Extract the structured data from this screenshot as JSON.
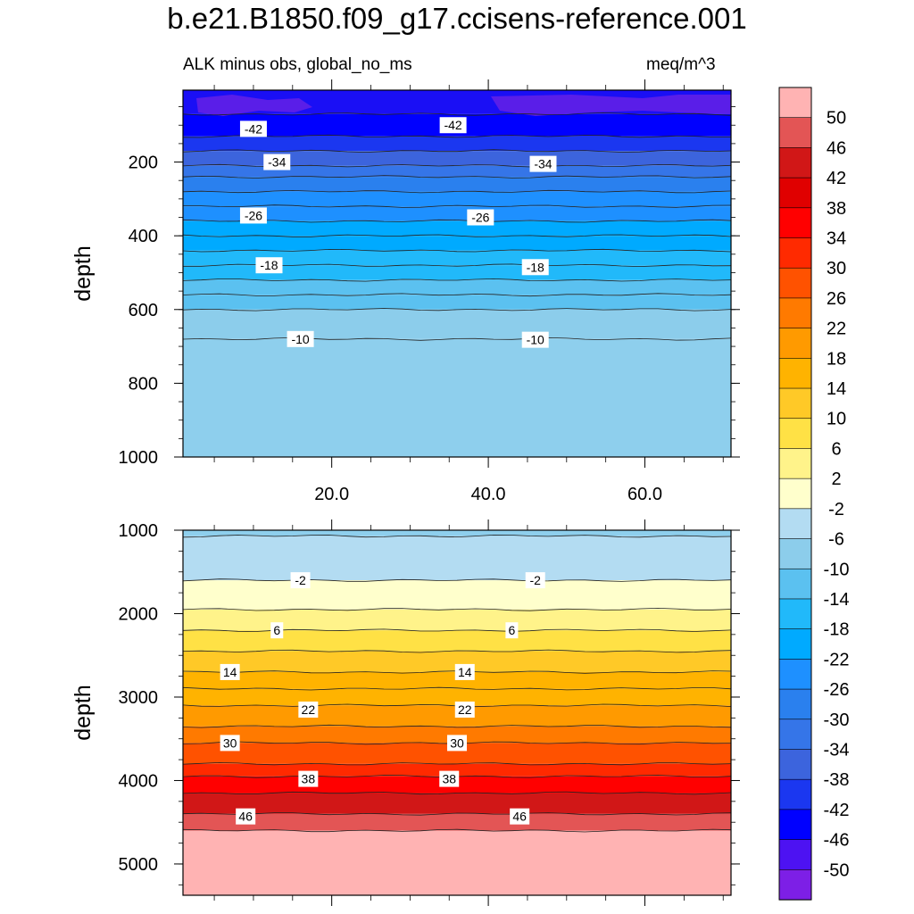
{
  "title": "b.e21.B1850.f09_g17.ccisens-reference.001",
  "subtitle_left": "ALK minus obs, global_no_ms",
  "subtitle_right": "meq/m^3",
  "chart_data": [
    {
      "type": "heatmap",
      "name": "upper-panel",
      "xlabel": "",
      "ylabel": "depth",
      "xlim": [
        1,
        71
      ],
      "ylim": [
        1000,
        5
      ],
      "xticks": [
        "20.0",
        "40.0",
        "60.0"
      ],
      "xtick_values": [
        20,
        40,
        60
      ],
      "yticks": [
        "200",
        "400",
        "600",
        "800",
        "1000"
      ],
      "ytick_values": [
        200,
        400,
        600,
        800,
        1000
      ],
      "contour_depths": [
        70,
        130,
        170,
        210,
        240,
        280,
        320,
        360,
        400,
        440,
        480,
        520,
        560,
        600,
        680
      ],
      "bands": [
        {
          "top": 5,
          "bottom": 70,
          "value": -50
        },
        {
          "top": 70,
          "bottom": 130,
          "value": -46
        },
        {
          "top": 130,
          "bottom": 170,
          "value": -42
        },
        {
          "top": 170,
          "bottom": 210,
          "value": -38
        },
        {
          "top": 210,
          "bottom": 240,
          "value": -34
        },
        {
          "top": 240,
          "bottom": 280,
          "value": -30
        },
        {
          "top": 280,
          "bottom": 320,
          "value": -26
        },
        {
          "top": 320,
          "bottom": 360,
          "value": -26
        },
        {
          "top": 360,
          "bottom": 400,
          "value": -22
        },
        {
          "top": 400,
          "bottom": 440,
          "value": -22
        },
        {
          "top": 440,
          "bottom": 480,
          "value": -18
        },
        {
          "top": 480,
          "bottom": 520,
          "value": -18
        },
        {
          "top": 520,
          "bottom": 560,
          "value": -14
        },
        {
          "top": 560,
          "bottom": 600,
          "value": -14
        },
        {
          "top": 600,
          "bottom": 680,
          "value": -10
        },
        {
          "top": 680,
          "bottom": 1000,
          "value": -6
        }
      ],
      "contour_labels": [
        {
          "text": "-42",
          "x": 10,
          "depth": 110
        },
        {
          "text": "-42",
          "x": 35.5,
          "depth": 100
        },
        {
          "text": "-34",
          "x": 13,
          "depth": 200
        },
        {
          "text": "-34",
          "x": 47,
          "depth": 205
        },
        {
          "text": "-26",
          "x": 10,
          "depth": 345
        },
        {
          "text": "-26",
          "x": 39,
          "depth": 350
        },
        {
          "text": "-18",
          "x": 12,
          "depth": 480
        },
        {
          "text": "-18",
          "x": 46,
          "depth": 485
        },
        {
          "text": "-10",
          "x": 16,
          "depth": 680
        },
        {
          "text": "-10",
          "x": 46,
          "depth": 682
        }
      ]
    },
    {
      "type": "heatmap",
      "name": "lower-panel",
      "xlabel": "",
      "ylabel": "depth",
      "xlim": [
        1,
        71
      ],
      "ylim": [
        5375,
        1000
      ],
      "xticks": [],
      "xtick_values": [
        20,
        40,
        60
      ],
      "yticks": [
        "1000",
        "2000",
        "3000",
        "4000",
        "5000"
      ],
      "ytick_values": [
        1000,
        2000,
        3000,
        4000,
        5000
      ],
      "contour_depths": [
        1070,
        1600,
        1950,
        2200,
        2450,
        2700,
        2900,
        3100,
        3350,
        3550,
        3800,
        3950,
        4150,
        4400,
        4600
      ],
      "bands": [
        {
          "top": 1000,
          "bottom": 1070,
          "value": -6
        },
        {
          "top": 1070,
          "bottom": 1600,
          "value": -2
        },
        {
          "top": 1600,
          "bottom": 1950,
          "value": 2
        },
        {
          "top": 1950,
          "bottom": 2200,
          "value": 6
        },
        {
          "top": 2200,
          "bottom": 2450,
          "value": 10
        },
        {
          "top": 2450,
          "bottom": 2700,
          "value": 14
        },
        {
          "top": 2700,
          "bottom": 2900,
          "value": 18
        },
        {
          "top": 2900,
          "bottom": 3100,
          "value": 18
        },
        {
          "top": 3100,
          "bottom": 3350,
          "value": 22
        },
        {
          "top": 3350,
          "bottom": 3550,
          "value": 26
        },
        {
          "top": 3550,
          "bottom": 3800,
          "value": 30
        },
        {
          "top": 3800,
          "bottom": 3950,
          "value": 34
        },
        {
          "top": 3950,
          "bottom": 4150,
          "value": 38
        },
        {
          "top": 4150,
          "bottom": 4400,
          "value": 42
        },
        {
          "top": 4400,
          "bottom": 4600,
          "value": 46
        },
        {
          "top": 4600,
          "bottom": 5375,
          "value": 50
        }
      ],
      "contour_labels": [
        {
          "text": "-2",
          "x": 16,
          "depth": 1600
        },
        {
          "text": "-2",
          "x": 46,
          "depth": 1600
        },
        {
          "text": "6",
          "x": 13,
          "depth": 2200
        },
        {
          "text": "6",
          "x": 43,
          "depth": 2200
        },
        {
          "text": "14",
          "x": 7,
          "depth": 2700
        },
        {
          "text": "14",
          "x": 37,
          "depth": 2700
        },
        {
          "text": "22",
          "x": 17,
          "depth": 3150
        },
        {
          "text": "22",
          "x": 37,
          "depth": 3150
        },
        {
          "text": "30",
          "x": 7,
          "depth": 3550
        },
        {
          "text": "30",
          "x": 36,
          "depth": 3550
        },
        {
          "text": "38",
          "x": 17,
          "depth": 3980
        },
        {
          "text": "38",
          "x": 35,
          "depth": 3980
        },
        {
          "text": "46",
          "x": 9,
          "depth": 4430
        },
        {
          "text": "46",
          "x": 44,
          "depth": 4430
        }
      ]
    }
  ],
  "colorbar": {
    "levels": [
      "50",
      "46",
      "42",
      "38",
      "34",
      "30",
      "26",
      "22",
      "18",
      "14",
      "10",
      "6",
      "2",
      "-2",
      "-6",
      "-10",
      "-14",
      "-18",
      "-22",
      "-26",
      "-30",
      "-34",
      "-38",
      "-42",
      "-46",
      "-50"
    ],
    "colors": [
      "#ffb3b3",
      "#e35555",
      "#d11717",
      "#e00000",
      "#ff0000",
      "#ff2a00",
      "#ff5200",
      "#ff7a00",
      "#ff9a00",
      "#ffb300",
      "#ffc927",
      "#ffe145",
      "#fff38a",
      "#ffffcc",
      "#b3dcf2",
      "#8ccdeb",
      "#5bc1f0",
      "#21b9fa",
      "#00aaff",
      "#1e90ff",
      "#2a80ee",
      "#3575e8",
      "#3c64dd",
      "#1b37f0",
      "#0000ff",
      "#4d12f2",
      "#7d1fe6"
    ]
  },
  "value_colors": {
    "-50": "#1a0ff5",
    "-46": "#0000ff",
    "-42": "#1b37f0",
    "-38": "#3c64dd",
    "-34": "#3575e8",
    "-30": "#2a80ee",
    "-26": "#1e90ff",
    "-22": "#00aaff",
    "-18": "#21b9fa",
    "-14": "#5bc1f0",
    "-10": "#8ccdeb",
    "-6": "#8ecfed",
    "-2": "#b3dcf2",
    "2": "#ffffcc",
    "6": "#fff38a",
    "10": "#ffe145",
    "14": "#ffc927",
    "18": "#ffb300",
    "22": "#ff9a00",
    "26": "#ff7a00",
    "30": "#ff5200",
    "34": "#ff2a00",
    "38": "#ff0000",
    "42": "#d11717",
    "46": "#e35555",
    "50": "#ffb3b3"
  },
  "purple_patch_color": "#5a1ee8"
}
